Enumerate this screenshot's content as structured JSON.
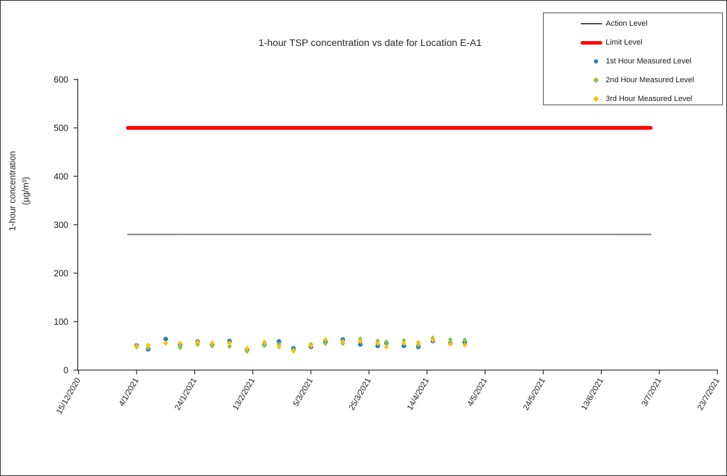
{
  "chart_data": {
    "type": "scatter",
    "title": "1-hour TSP concentration vs date for Location E-A1",
    "ylabel_line1": "1-hour concentration",
    "ylabel_line2": "(µg/m³)",
    "ylim": [
      0,
      600
    ],
    "yticks": [
      0,
      100,
      200,
      300,
      400,
      500,
      600
    ],
    "grid": "off",
    "legend_position": "top-right",
    "x_ticks": [
      {
        "label": "15/12/2020",
        "day": 0
      },
      {
        "label": "4/1/2021",
        "day": 20
      },
      {
        "label": "24/1/2021",
        "day": 40
      },
      {
        "label": "13/2/2021",
        "day": 60
      },
      {
        "label": "5/3/2021",
        "day": 80
      },
      {
        "label": "25/3/2021",
        "day": 100
      },
      {
        "label": "14/4/2021",
        "day": 120
      },
      {
        "label": "4/5/2021",
        "day": 140
      },
      {
        "label": "24/5/2021",
        "day": 160
      },
      {
        "label": "13/6/2021",
        "day": 180
      },
      {
        "label": "3/7/2021",
        "day": 200
      },
      {
        "label": "23/7/2021",
        "day": 220
      }
    ],
    "reference_lines": [
      {
        "name": "Action Level",
        "value": 280,
        "color": "#808080",
        "thickness": 2,
        "start_day": 17,
        "end_day": 197
      },
      {
        "name": "Limit Level",
        "value": 500,
        "color": "#FF0000",
        "thickness": 5.5,
        "start_day": 17,
        "end_day": 197
      }
    ],
    "series": [
      {
        "name": "1st Hour Measured Level",
        "key": "first",
        "color": "#1F7AC4",
        "marker": "circle"
      },
      {
        "name": "2nd Hour Measured Level",
        "key": "second",
        "color": "#8CC540",
        "marker": "diamond"
      },
      {
        "name": "3rd Hour Measured Level",
        "key": "third",
        "color": "#FFC000",
        "marker": "diamond"
      }
    ],
    "points": [
      {
        "date": "4/1/2021",
        "day": 20,
        "first": 51,
        "second": 48,
        "third": 50
      },
      {
        "date": "8/1/2021",
        "day": 24,
        "first": 43,
        "second": 46,
        "third": 51
      },
      {
        "date": "14/1/2021",
        "day": 30,
        "first": 64,
        "second": 56,
        "third": 56
      },
      {
        "date": "19/1/2021",
        "day": 35,
        "first": 53,
        "second": 47,
        "third": 55
      },
      {
        "date": "25/1/2021",
        "day": 41,
        "first": 59,
        "second": 53,
        "third": 58
      },
      {
        "date": "30/1/2021",
        "day": 46,
        "first": 52,
        "second": 50,
        "third": 56
      },
      {
        "date": "5/2/2021",
        "day": 52,
        "first": 60,
        "second": 49,
        "third": 56
      },
      {
        "date": "11/2/2021",
        "day": 58,
        "first": 42,
        "second": 39,
        "third": 45
      },
      {
        "date": "17/2/2021",
        "day": 64,
        "first": 52,
        "second": 51,
        "third": 58
      },
      {
        "date": "22/2/2021",
        "day": 69,
        "first": 59,
        "second": 53,
        "third": 48
      },
      {
        "date": "27/2/2021",
        "day": 74,
        "first": 45,
        "second": 42,
        "third": 39
      },
      {
        "date": "5/3/2021",
        "day": 80,
        "first": 48,
        "second": 53,
        "third": 50
      },
      {
        "date": "10/3/2021",
        "day": 85,
        "first": 58,
        "second": 55,
        "third": 63
      },
      {
        "date": "16/3/2021",
        "day": 91,
        "first": 63,
        "second": 55,
        "third": 59
      },
      {
        "date": "22/3/2021",
        "day": 97,
        "first": 53,
        "second": 64,
        "third": 59
      },
      {
        "date": "28/3/2021",
        "day": 103,
        "first": 50,
        "second": 60,
        "third": 55
      },
      {
        "date": "31/3/2021",
        "day": 106,
        "first": 56,
        "second": 58,
        "third": 48
      },
      {
        "date": "6/4/2021",
        "day": 112,
        "first": 50,
        "second": 61,
        "third": 55
      },
      {
        "date": "11/4/2021",
        "day": 117,
        "first": 48,
        "second": 52,
        "third": 57
      },
      {
        "date": "16/4/2021",
        "day": 122,
        "first": 60,
        "second": 66,
        "third": 62
      },
      {
        "date": "22/4/2021",
        "day": 128,
        "first": 55,
        "second": 63,
        "third": 54
      },
      {
        "date": "27/4/2021",
        "day": 133,
        "first": 57,
        "second": 62,
        "third": 52
      }
    ]
  },
  "legend": {
    "entries": [
      {
        "label": "Action Level",
        "swatch": "line",
        "color": "#4d4d4d",
        "thickness": 1.5
      },
      {
        "label": "Limit Level",
        "swatch": "line",
        "color": "#FF0000",
        "thickness": 5
      },
      {
        "label": "1st Hour Measured Level",
        "swatch": "circle",
        "color": "#1F7AC4"
      },
      {
        "label": "2nd Hour Measured Level",
        "swatch": "diamond",
        "color": "#8CC540"
      },
      {
        "label": "3rd Hour Measured Level",
        "swatch": "diamond",
        "color": "#FFC000"
      }
    ]
  }
}
